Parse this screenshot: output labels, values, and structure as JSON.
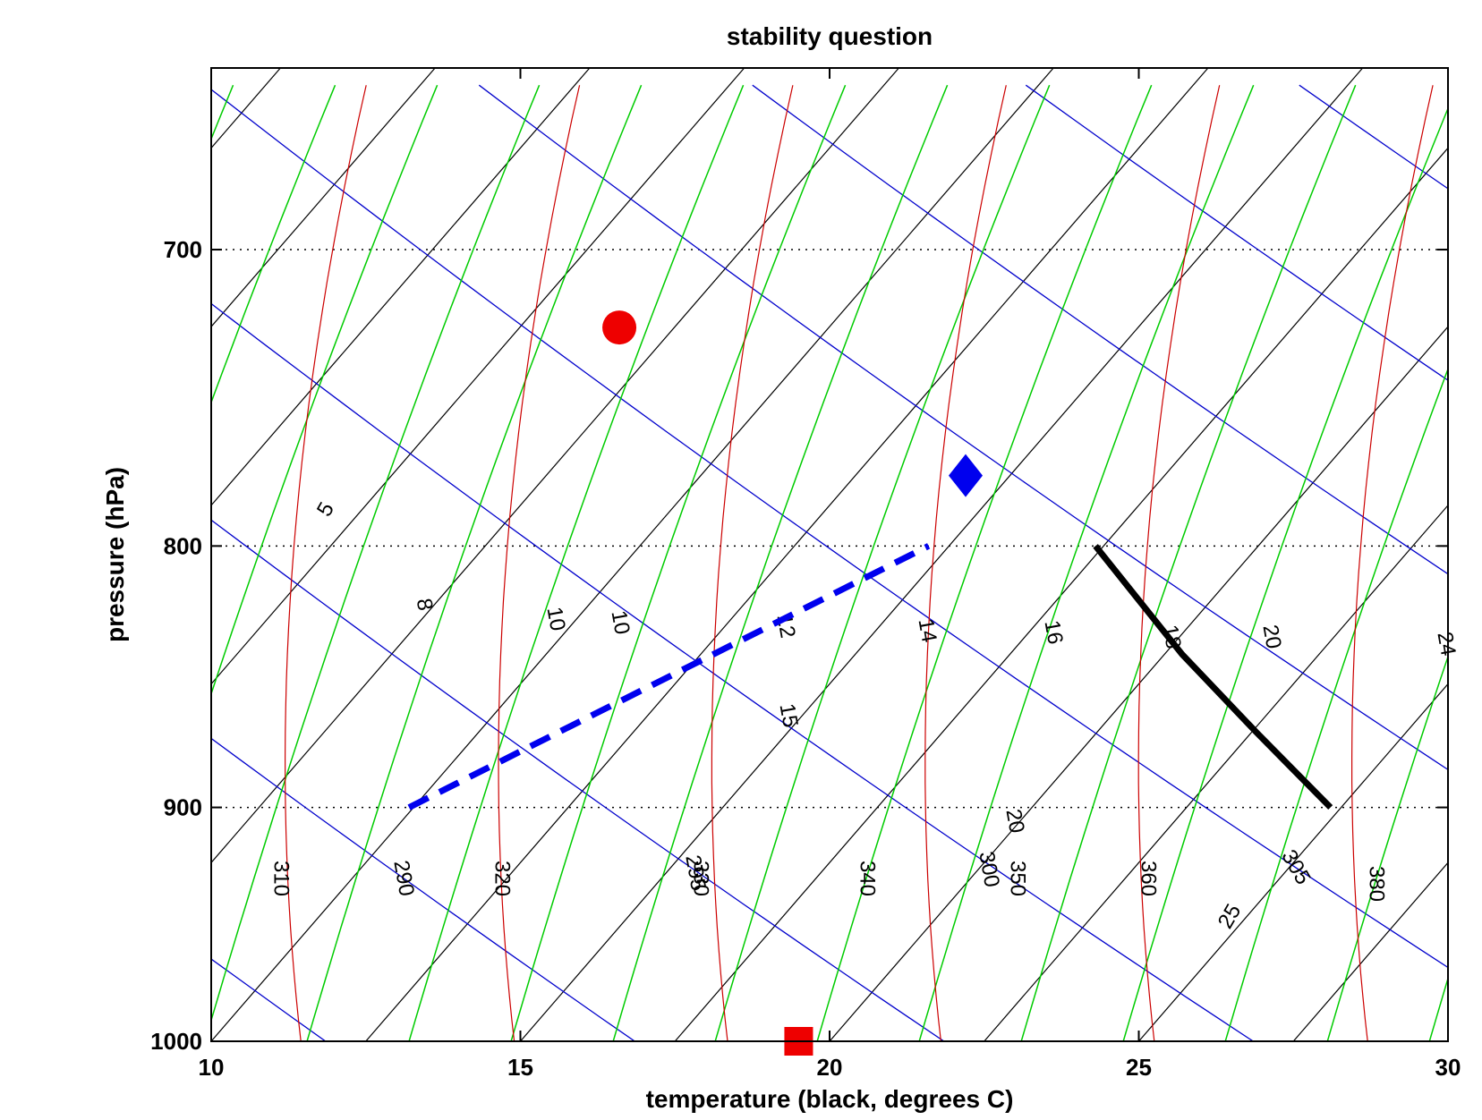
{
  "chart_data": {
    "type": "skew-t diagram",
    "title": "stability question",
    "xlabel": "temperature (black, degrees C)",
    "ylabel": "pressure (hPa)",
    "xlim": [
      10,
      30
    ],
    "ylim": [
      1000,
      645
    ],
    "x_ticks": [
      10,
      15,
      20,
      25,
      30
    ],
    "x_tick_labels": [
      "10",
      "15",
      "20",
      "25",
      "30"
    ],
    "y_ticks": [
      700,
      800,
      900,
      1000
    ],
    "y_tick_labels": [
      "700",
      "800",
      "900",
      "1000"
    ],
    "grid": "dotted horizontal at labelled pressures",
    "colors": {
      "isotherm": "#000000",
      "dry_adiabat": "#0000cc",
      "moist_adiabat": "#00cc00",
      "mixing_ratio": "#cc0000",
      "dashed_profile": "#0000ee",
      "solid_profile": "#000000",
      "circle_marker": "#ee0000",
      "square_marker": "#ee0000",
      "diamond_marker": "#0000ee"
    },
    "isotherm_labels": [
      "5",
      "10",
      "15",
      "20",
      "25"
    ],
    "dry_adiabat_labels": [
      "290",
      "295",
      "300",
      "305"
    ],
    "moist_adiabat_labels": [
      "310",
      "320",
      "330",
      "340",
      "350",
      "360",
      "380"
    ],
    "mixing_ratio_labels": [
      "8",
      "10",
      "12",
      "14",
      "16",
      "18",
      "20",
      "24"
    ],
    "series": [
      {
        "style": "dashed",
        "points": [
          [
            13.2,
            900
          ],
          [
            21.6,
            800
          ]
        ]
      },
      {
        "style": "solid",
        "points": [
          [
            24.3,
            800
          ],
          [
            25.7,
            840
          ],
          [
            26.9,
            870
          ],
          [
            28.1,
            900
          ]
        ]
      }
    ],
    "markers": [
      {
        "shape": "circle",
        "x": 16.6,
        "y": 725
      },
      {
        "shape": "diamond",
        "x": 22.2,
        "y": 775
      },
      {
        "shape": "square",
        "x": 19.5,
        "y": 1000
      }
    ]
  }
}
